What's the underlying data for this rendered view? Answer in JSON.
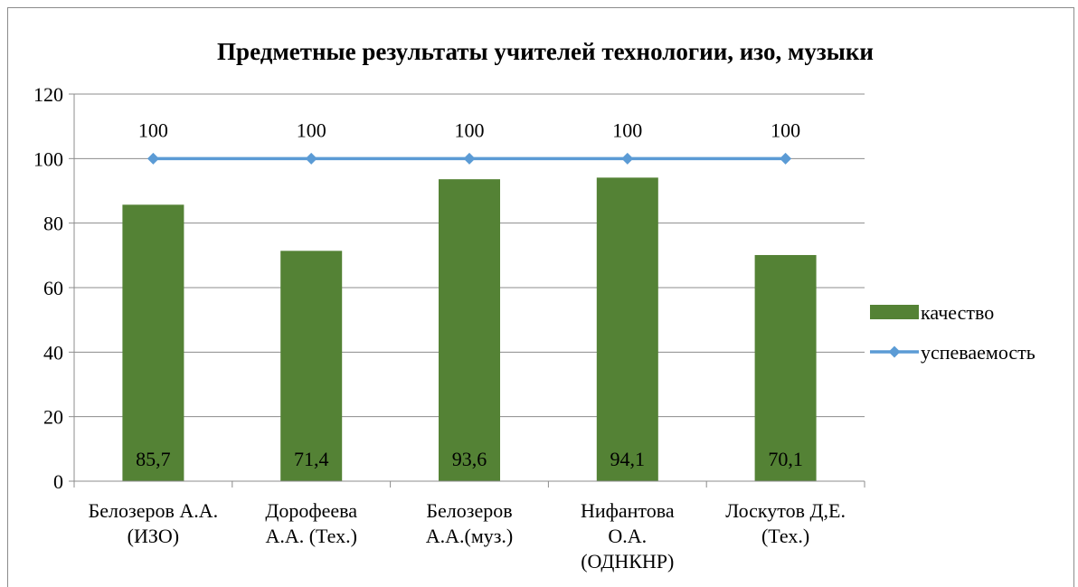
{
  "chart_data": {
    "type": "bar",
    "title": "Предметные результаты учителей технологии, изо, музыки",
    "categories": [
      [
        "Белозеров А.А.",
        "(ИЗО)"
      ],
      [
        "Дорофеева",
        "А.А. (Тех.)"
      ],
      [
        "Белозеров",
        "А.А.(муз.)"
      ],
      [
        "Нифантова",
        "О.А.",
        "(ОДНКНР)"
      ],
      [
        "Лоскутов Д,Е.",
        "(Тех.)"
      ]
    ],
    "ylim": [
      0,
      120
    ],
    "yticks": [
      0,
      20,
      40,
      60,
      80,
      100,
      120
    ],
    "grid": true,
    "legend_position": "right",
    "series": [
      {
        "name": "качество",
        "type": "bar",
        "color": "#548235",
        "values": [
          85.7,
          71.4,
          93.6,
          94.1,
          70.1
        ],
        "data_labels": [
          "85,7",
          "71,4",
          "93,6",
          "94,1",
          "70,1"
        ]
      },
      {
        "name": "успеваемость",
        "type": "line",
        "color": "#5B9BD5",
        "marker": "diamond",
        "values": [
          100,
          100,
          100,
          100,
          100
        ],
        "data_labels": [
          "100",
          "100",
          "100",
          "100",
          "100"
        ]
      }
    ]
  }
}
